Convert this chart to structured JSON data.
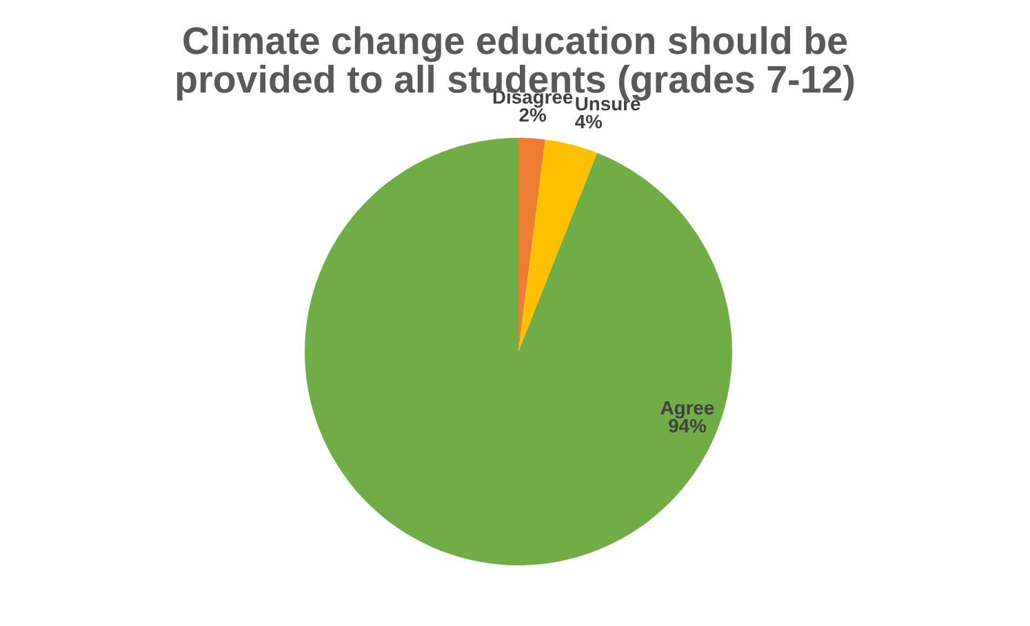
{
  "chart_data": {
    "type": "pie",
    "title": "Climate change education should be\nprovided to all students (grades 7-12)",
    "categories": [
      "Disagree",
      "Unsure",
      "Agree"
    ],
    "values": [
      2,
      4,
      94
    ],
    "value_labels": [
      "2%",
      "4%",
      "94%"
    ],
    "colors": [
      "#ed7d31",
      "#ffc000",
      "#70ad47"
    ],
    "legend": false
  }
}
